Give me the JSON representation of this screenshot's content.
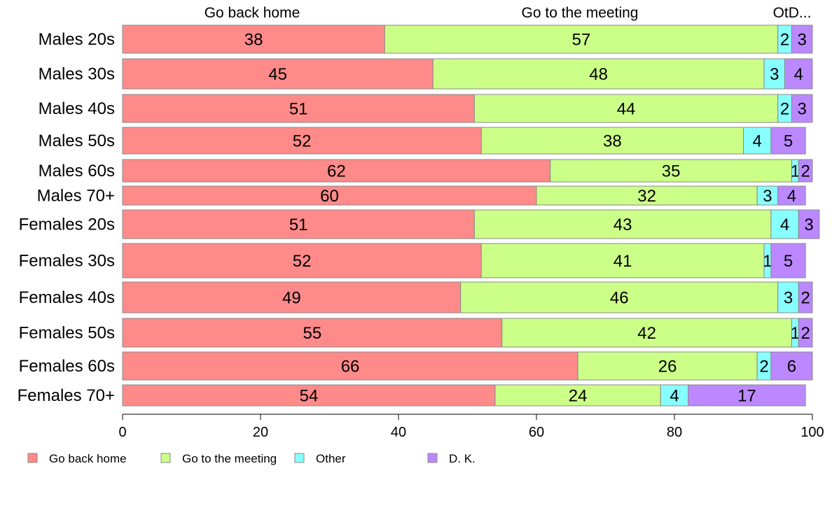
{
  "chart_data": {
    "type": "bar",
    "orientation": "horizontal",
    "stacked": true,
    "bar_height_varies_with_group_size": true,
    "categories": [
      "Males 20s",
      "Males 30s",
      "Males 40s",
      "Males 50s",
      "Males 60s",
      "Males 70+",
      "Females 20s",
      "Females 30s",
      "Females 40s",
      "Females 50s",
      "Females 60s",
      "Females 70+"
    ],
    "column_headers": [
      "Go back home",
      "Go to the meeting",
      "OtD..."
    ],
    "series": [
      {
        "name": "Go back home",
        "color": "#FF8A8A",
        "values": [
          38,
          45,
          51,
          52,
          62,
          60,
          51,
          52,
          49,
          55,
          66,
          54
        ]
      },
      {
        "name": "Go to the meeting",
        "color": "#CCFF88",
        "values": [
          57,
          48,
          44,
          38,
          35,
          32,
          43,
          41,
          46,
          42,
          26,
          24
        ]
      },
      {
        "name": "Other",
        "color": "#88FFFF",
        "values": [
          2,
          3,
          2,
          4,
          1,
          3,
          4,
          1,
          3,
          1,
          2,
          4
        ]
      },
      {
        "name": "D. K.",
        "color": "#BB88FF",
        "values": [
          3,
          4,
          3,
          5,
          2,
          4,
          3,
          5,
          2,
          2,
          6,
          17
        ]
      }
    ],
    "x_ticks": [
      "0",
      "20",
      "40",
      "60",
      "80",
      "100"
    ],
    "xlim": [
      0,
      100
    ],
    "grid": false,
    "legend_position": "bottom"
  }
}
